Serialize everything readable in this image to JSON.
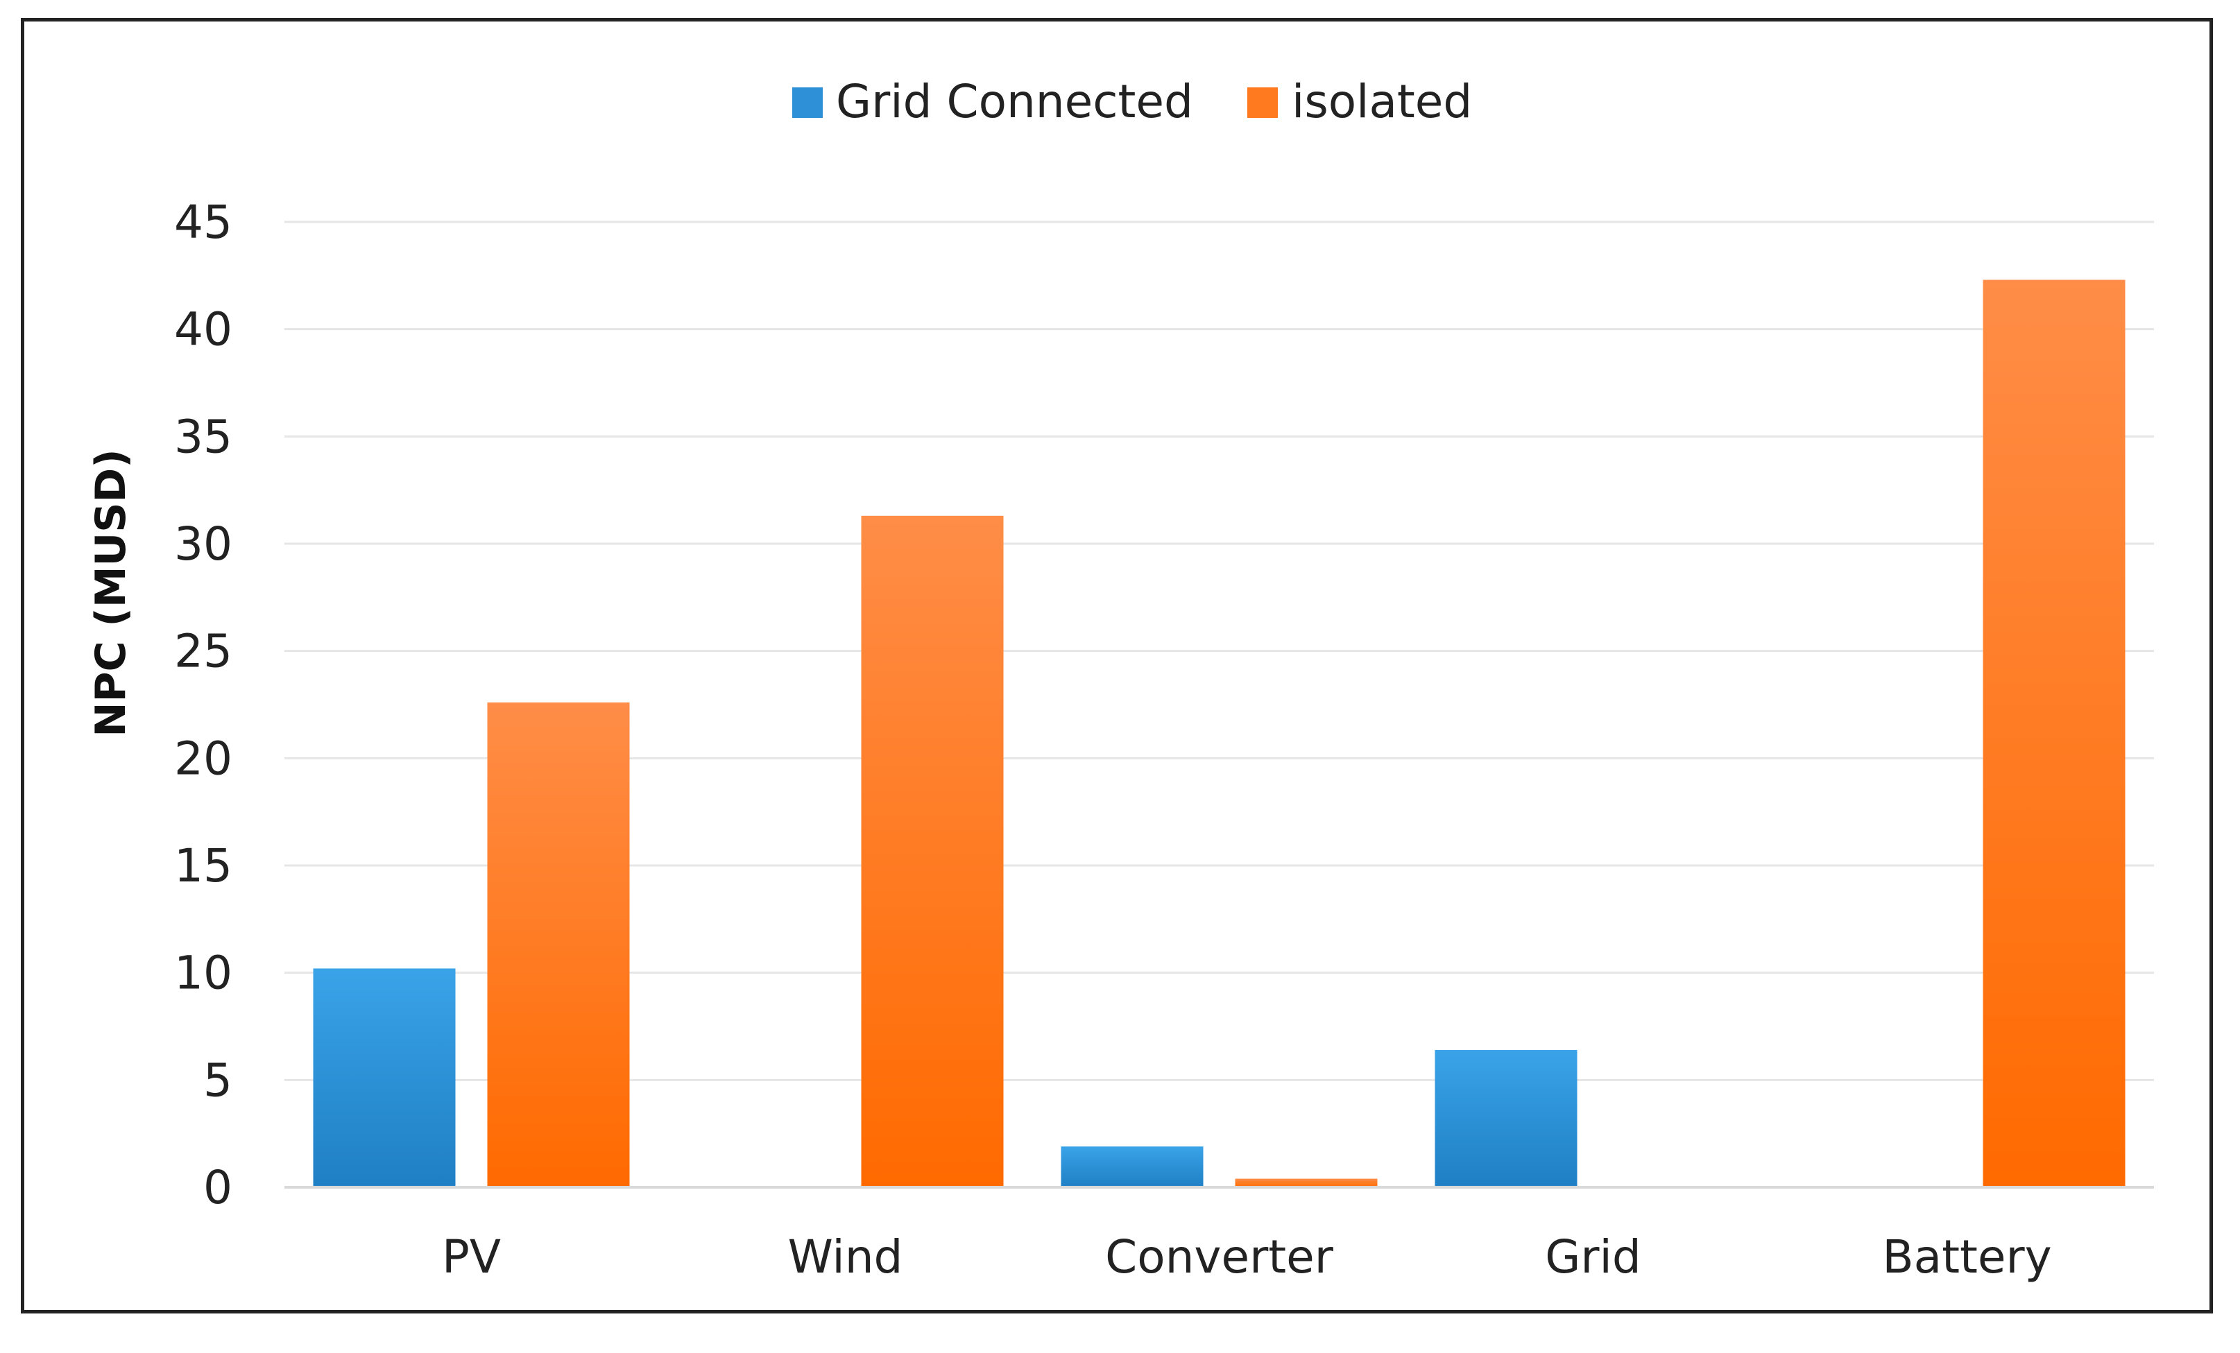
{
  "chart_data": {
    "type": "bar",
    "title": "",
    "xlabel": "",
    "ylabel": "NPC (MUSD)",
    "categories": [
      "PV",
      "Wind",
      "Converter",
      "Grid",
      "Battery"
    ],
    "series": [
      {
        "name": "Grid Connected",
        "color": "#2e90d6",
        "values": [
          10.2,
          0,
          1.9,
          6.4,
          0
        ]
      },
      {
        "name": "isolated",
        "color": "#ff7a1f",
        "values": [
          22.6,
          31.3,
          0.4,
          0,
          42.3
        ]
      }
    ],
    "yticks": [
      "0",
      "5",
      "10",
      "15",
      "20",
      "25",
      "30",
      "35",
      "40",
      "45"
    ],
    "ylim": [
      0,
      45
    ],
    "grid": true,
    "legend_position": "top-center"
  }
}
